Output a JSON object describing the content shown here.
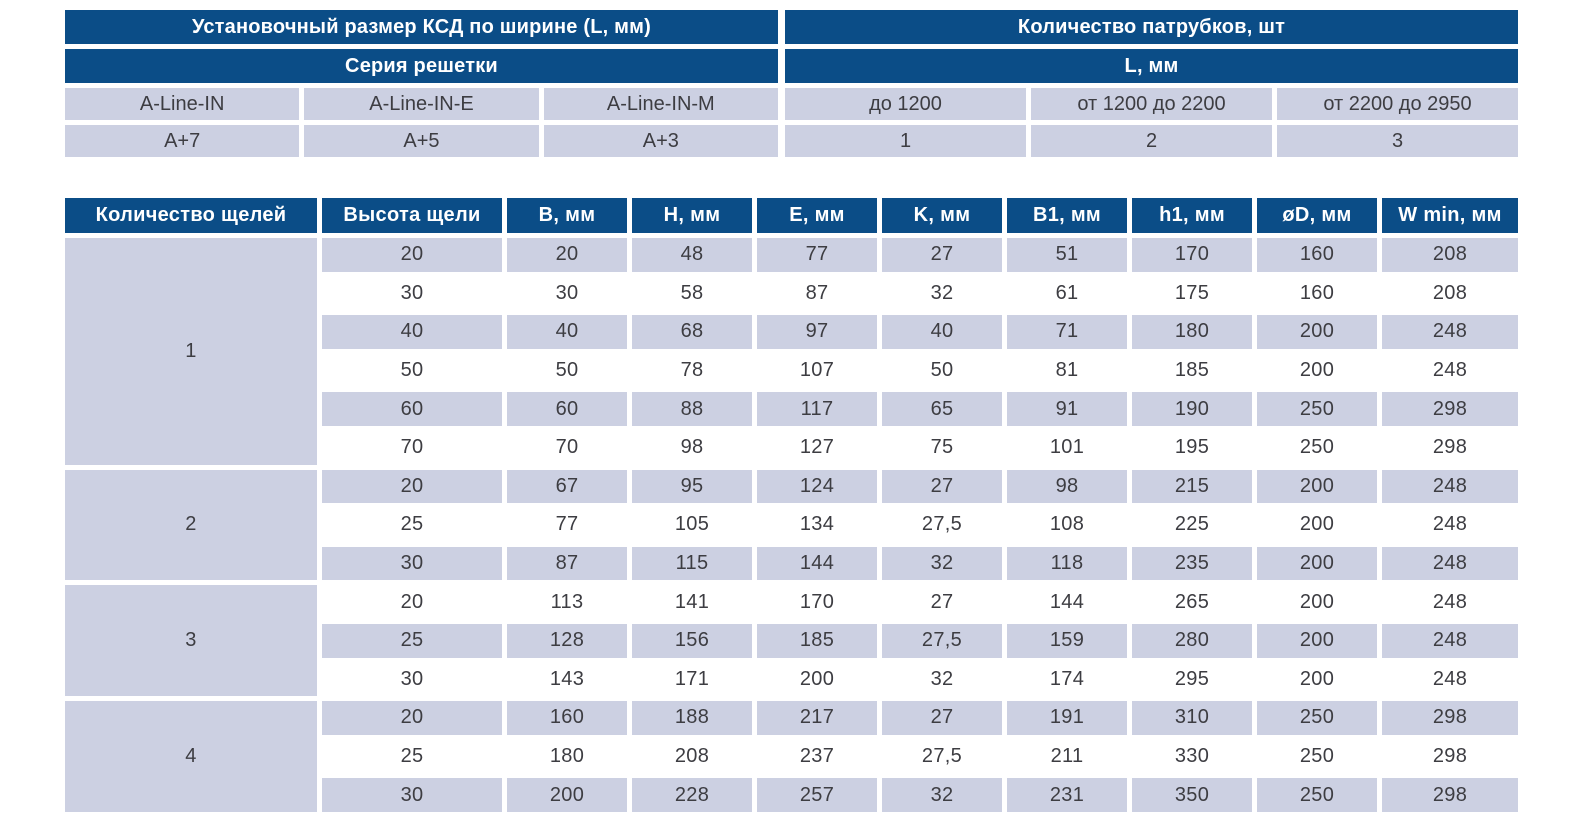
{
  "colors": {
    "header_blue": "#0b4d87",
    "row_lavender": "#ccd0e2",
    "data_text": "#3d3d42",
    "header_text": "#ffffff",
    "background": "#ffffff"
  },
  "top_table": {
    "left": {
      "title": "Установочный размер КСД по ширине (L, мм)",
      "subtitle": "Серия решетки",
      "columns": [
        "A-Line-IN",
        "A-Line-IN-E",
        "A-Line-IN-M"
      ],
      "values": [
        "A+7",
        "A+5",
        "A+3"
      ]
    },
    "right": {
      "title": "Количество патрубков, шт",
      "subtitle": "L, мм",
      "columns": [
        "до 1200",
        "от 1200 до 2200",
        "от 2200 до 2950"
      ],
      "values": [
        "1",
        "2",
        "3"
      ]
    }
  },
  "chart_data": {
    "type": "table",
    "headers": [
      "Количество щелей",
      "Высота щели",
      "B, мм",
      "H, мм",
      "E, мм",
      "K, мм",
      "B1, мм",
      "h1, мм",
      "øD, мм",
      "W min, мм"
    ],
    "sections": [
      {
        "slot_count": "1",
        "rows": [
          [
            "20",
            "20",
            "48",
            "77",
            "27",
            "51",
            "170",
            "160",
            "208"
          ],
          [
            "30",
            "30",
            "58",
            "87",
            "32",
            "61",
            "175",
            "160",
            "208"
          ],
          [
            "40",
            "40",
            "68",
            "97",
            "40",
            "71",
            "180",
            "200",
            "248"
          ],
          [
            "50",
            "50",
            "78",
            "107",
            "50",
            "81",
            "185",
            "200",
            "248"
          ],
          [
            "60",
            "60",
            "88",
            "117",
            "65",
            "91",
            "190",
            "250",
            "298"
          ],
          [
            "70",
            "70",
            "98",
            "127",
            "75",
            "101",
            "195",
            "250",
            "298"
          ]
        ]
      },
      {
        "slot_count": "2",
        "rows": [
          [
            "20",
            "67",
            "95",
            "124",
            "27",
            "98",
            "215",
            "200",
            "248"
          ],
          [
            "25",
            "77",
            "105",
            "134",
            "27,5",
            "108",
            "225",
            "200",
            "248"
          ],
          [
            "30",
            "87",
            "115",
            "144",
            "32",
            "118",
            "235",
            "200",
            "248"
          ]
        ]
      },
      {
        "slot_count": "3",
        "rows": [
          [
            "20",
            "113",
            "141",
            "170",
            "27",
            "144",
            "265",
            "200",
            "248"
          ],
          [
            "25",
            "128",
            "156",
            "185",
            "27,5",
            "159",
            "280",
            "200",
            "248"
          ],
          [
            "30",
            "143",
            "171",
            "200",
            "32",
            "174",
            "295",
            "200",
            "248"
          ]
        ]
      },
      {
        "slot_count": "4",
        "rows": [
          [
            "20",
            "160",
            "188",
            "217",
            "27",
            "191",
            "310",
            "250",
            "298"
          ],
          [
            "25",
            "180",
            "208",
            "237",
            "27,5",
            "211",
            "330",
            "250",
            "298"
          ],
          [
            "30",
            "200",
            "228",
            "257",
            "32",
            "231",
            "350",
            "250",
            "298"
          ]
        ]
      }
    ]
  }
}
